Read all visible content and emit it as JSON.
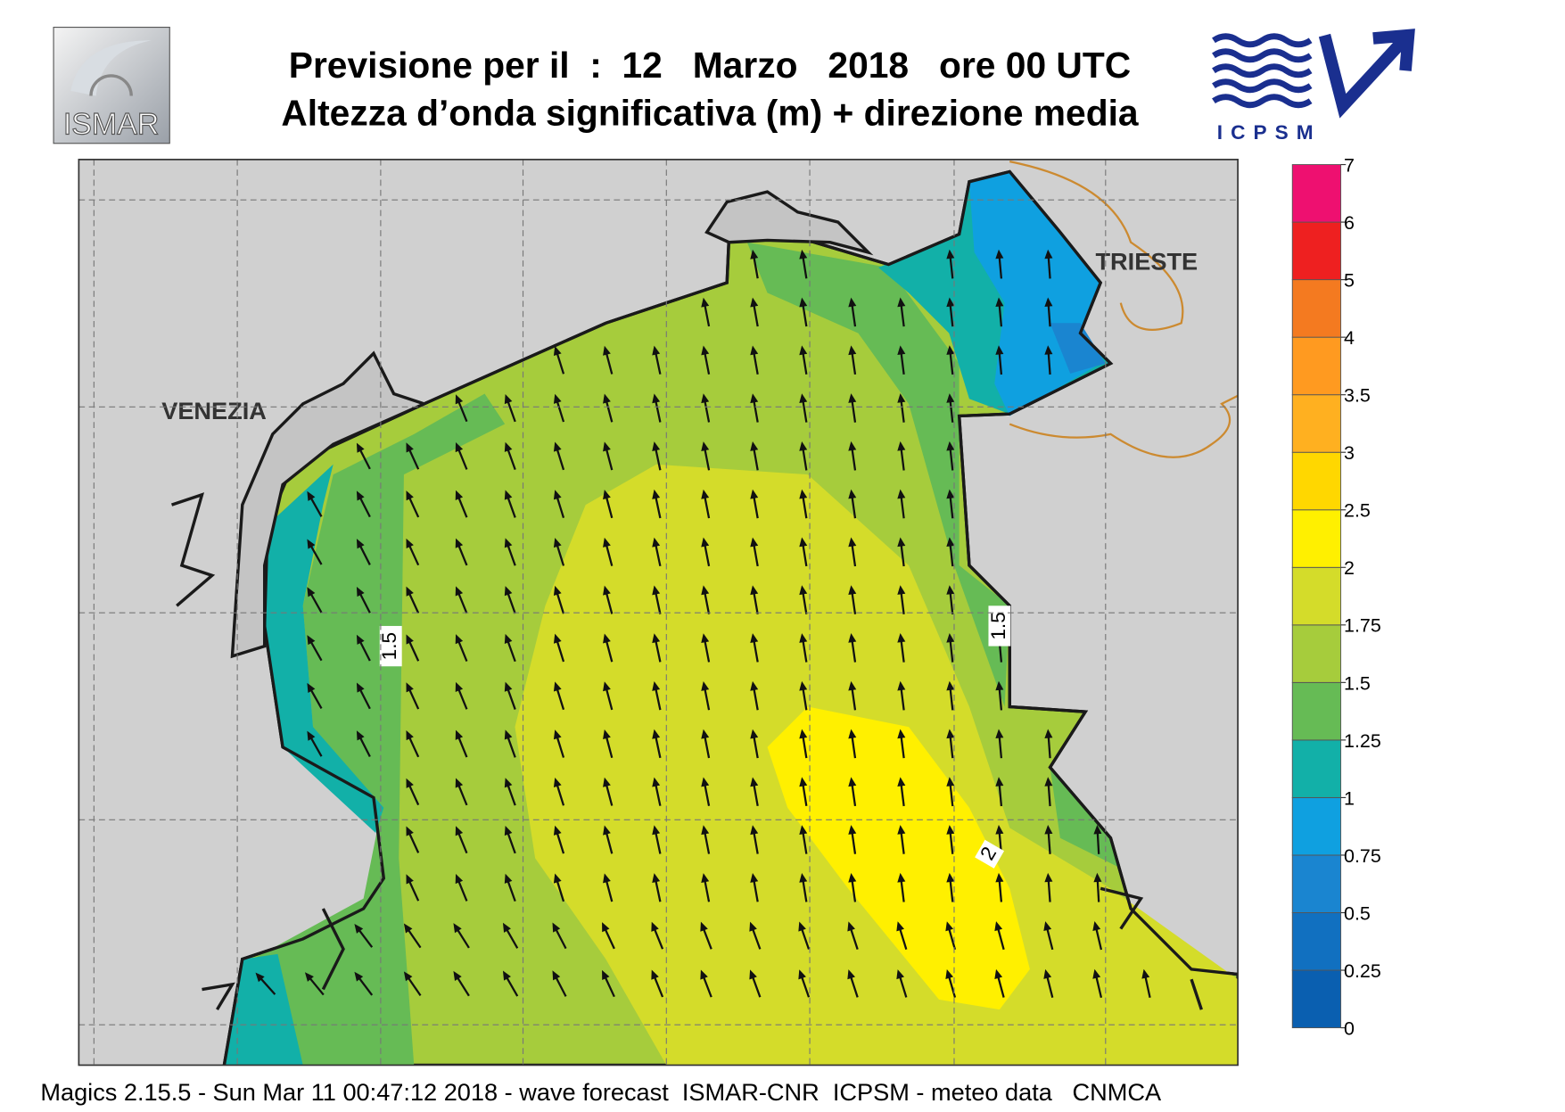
{
  "header": {
    "title_line1": "Previsione per il  :  12   Marzo   2018   ore 00 UTC",
    "title_line2": "Altezza d’onda significativa (m) + direzione media",
    "logo_left": "ISMAR",
    "logo_right": "ICPSM"
  },
  "map": {
    "places": [
      "VENEZIA",
      "TRIESTE"
    ],
    "contour_labels": [
      "1.5",
      "1.5",
      "2"
    ]
  },
  "colorbar": {
    "ticks": [
      0,
      0.25,
      0.5,
      0.75,
      1,
      1.25,
      1.5,
      1.75,
      2,
      2.5,
      3,
      3.5,
      4,
      5,
      6,
      7
    ],
    "colors": [
      "#0a5fb0",
      "#1170c0",
      "#1a85d0",
      "#0fa0e0",
      "#12b0a8",
      "#66bb55",
      "#a6cc3c",
      "#d4dc2a",
      "#fff000",
      "#ffd700",
      "#ffb020",
      "#ff9a20",
      "#f47a20",
      "#ee2020",
      "#ee1070"
    ]
  },
  "footer": "Magics 2.15.5 - Sun Mar 11 00:47:12 2018 - wave forecast  ISMAR-CNR  ICPSM - meteo data   CNMCA"
}
